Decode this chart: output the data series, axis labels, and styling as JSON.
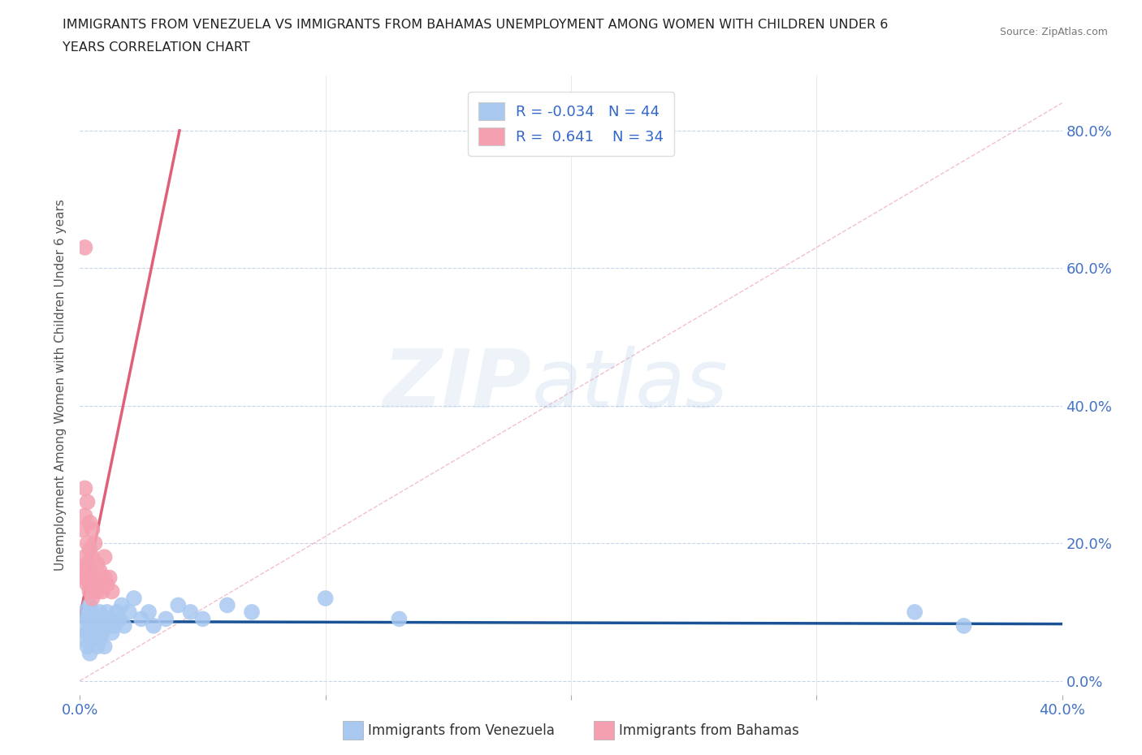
{
  "title_line1": "IMMIGRANTS FROM VENEZUELA VS IMMIGRANTS FROM BAHAMAS UNEMPLOYMENT AMONG WOMEN WITH CHILDREN UNDER 6",
  "title_line2": "YEARS CORRELATION CHART",
  "source": "Source: ZipAtlas.com",
  "ylabel": "Unemployment Among Women with Children Under 6 years",
  "xlabel_venezuela": "Immigrants from Venezuela",
  "xlabel_bahamas": "Immigrants from Bahamas",
  "watermark_zip": "ZIP",
  "watermark_atlas": "atlas",
  "legend_r_venezuela": "-0.034",
  "legend_n_venezuela": "44",
  "legend_r_bahamas": "0.641",
  "legend_n_bahamas": "34",
  "xlim": [
    0.0,
    0.4
  ],
  "ylim": [
    -0.02,
    0.88
  ],
  "xticks": [
    0.0,
    0.1,
    0.2,
    0.3,
    0.4
  ],
  "yticks": [
    0.0,
    0.2,
    0.4,
    0.6,
    0.8
  ],
  "color_venezuela": "#a8c8f0",
  "color_bahamas": "#f4a0b0",
  "color_venezuela_line": "#1a5296",
  "color_bahamas_line": "#e0607a",
  "color_diagonal": "#f0b0c0",
  "background": "#ffffff",
  "grid_color": "#c8d4e8",
  "title_color": "#222222",
  "right_axis_color": "#4472c4",
  "venezuela_x": [
    0.001,
    0.002,
    0.002,
    0.003,
    0.003,
    0.003,
    0.004,
    0.004,
    0.004,
    0.005,
    0.005,
    0.006,
    0.006,
    0.007,
    0.007,
    0.008,
    0.008,
    0.009,
    0.009,
    0.01,
    0.01,
    0.011,
    0.012,
    0.013,
    0.014,
    0.015,
    0.016,
    0.017,
    0.018,
    0.02,
    0.022,
    0.025,
    0.028,
    0.03,
    0.035,
    0.04,
    0.045,
    0.05,
    0.06,
    0.07,
    0.1,
    0.13,
    0.34,
    0.36
  ],
  "venezuela_y": [
    0.08,
    0.06,
    0.1,
    0.05,
    0.07,
    0.09,
    0.04,
    0.08,
    0.11,
    0.06,
    0.1,
    0.07,
    0.09,
    0.05,
    0.08,
    0.06,
    0.1,
    0.07,
    0.09,
    0.05,
    0.08,
    0.1,
    0.09,
    0.07,
    0.08,
    0.1,
    0.09,
    0.11,
    0.08,
    0.1,
    0.12,
    0.09,
    0.1,
    0.08,
    0.09,
    0.11,
    0.1,
    0.09,
    0.11,
    0.1,
    0.12,
    0.09,
    0.1,
    0.08
  ],
  "bahamas_x": [
    0.001,
    0.001,
    0.002,
    0.002,
    0.002,
    0.002,
    0.003,
    0.003,
    0.003,
    0.003,
    0.003,
    0.004,
    0.004,
    0.004,
    0.004,
    0.005,
    0.005,
    0.005,
    0.006,
    0.006,
    0.007,
    0.007,
    0.008,
    0.008,
    0.009,
    0.01,
    0.01,
    0.011,
    0.012,
    0.013,
    0.002,
    0.003,
    0.004,
    0.005
  ],
  "bahamas_y": [
    0.16,
    0.22,
    0.15,
    0.18,
    0.24,
    0.28,
    0.14,
    0.17,
    0.2,
    0.26,
    0.15,
    0.13,
    0.16,
    0.19,
    0.23,
    0.14,
    0.18,
    0.22,
    0.15,
    0.2,
    0.13,
    0.17,
    0.14,
    0.16,
    0.13,
    0.15,
    0.18,
    0.14,
    0.15,
    0.13,
    0.63,
    0.16,
    0.14,
    0.12
  ]
}
